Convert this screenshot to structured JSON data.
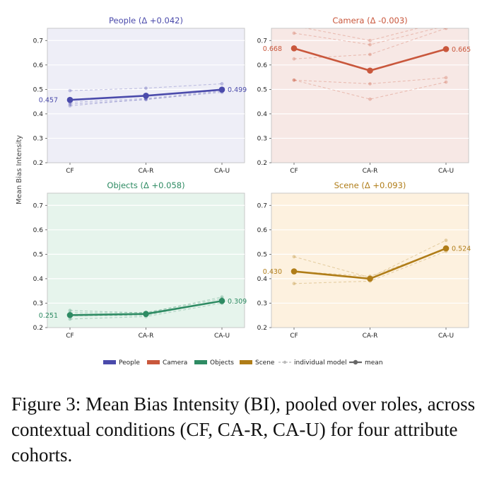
{
  "figure": {
    "ylabel": "Mean Bias Intensity",
    "legend": {
      "placement": "bottom",
      "items": [
        {
          "label": "People",
          "type": "swatch",
          "color": "#4a4aab"
        },
        {
          "label": "Camera",
          "type": "swatch",
          "color": "#c9573c"
        },
        {
          "label": "Objects",
          "type": "swatch",
          "color": "#2e8b63"
        },
        {
          "label": "Scene",
          "type": "swatch",
          "color": "#b07d18"
        },
        {
          "label": "individual model",
          "type": "dashed",
          "color": "#bbbbbb"
        },
        {
          "label": "mean",
          "type": "solid",
          "color": "#666666"
        }
      ]
    }
  },
  "chart_data": [
    {
      "type": "line",
      "title": "People  (Δ +0.042)",
      "color": "#4a4aab",
      "background": "#eeeef7",
      "categories": [
        "CF",
        "CA-R",
        "CA-U"
      ],
      "ylim": [
        0.2,
        0.75
      ],
      "yticks": [
        0.2,
        0.3,
        0.4,
        0.5,
        0.6,
        0.7
      ],
      "ytick_labels": [
        "0.2",
        "0.3",
        "0.4",
        "0.5",
        "0.6",
        "0.7"
      ],
      "grid": true,
      "mean": [
        0.457,
        0.474,
        0.499
      ],
      "mean_labels": [
        "0.457",
        "",
        "0.499"
      ],
      "models": [
        [
          0.495,
          0.505,
          0.523
        ],
        [
          0.447,
          0.463,
          0.495
        ],
        [
          0.44,
          0.458,
          0.492
        ],
        [
          0.433,
          0.46,
          0.488
        ]
      ]
    },
    {
      "type": "line",
      "title": "Camera  (Δ -0.003)",
      "color": "#c9573c",
      "background": "#f7e8e5",
      "categories": [
        "CF",
        "CA-R",
        "CA-U"
      ],
      "ylim": [
        0.2,
        0.75
      ],
      "yticks": [
        0.2,
        0.3,
        0.4,
        0.5,
        0.6,
        0.7
      ],
      "ytick_labels": [
        "0.2",
        "0.3",
        "0.4",
        "0.5",
        "0.6",
        "0.7"
      ],
      "grid": true,
      "mean": [
        0.668,
        0.577,
        0.665
      ],
      "mean_labels": [
        "0.668",
        "",
        "0.665"
      ],
      "models": [
        [
          0.73,
          0.683,
          0.76
        ],
        [
          0.76,
          0.7,
          0.78
        ],
        [
          0.625,
          0.643,
          0.75
        ],
        [
          0.538,
          0.523,
          0.548
        ],
        [
          0.538,
          0.46,
          0.53
        ]
      ]
    },
    {
      "type": "line",
      "title": "Objects  (Δ +0.058)",
      "color": "#2e8b63",
      "background": "#e6f4ec",
      "categories": [
        "CF",
        "CA-R",
        "CA-U"
      ],
      "ylim": [
        0.2,
        0.75
      ],
      "yticks": [
        0.2,
        0.3,
        0.4,
        0.5,
        0.6,
        0.7
      ],
      "ytick_labels": [
        "0.2",
        "0.3",
        "0.4",
        "0.5",
        "0.6",
        "0.7"
      ],
      "grid": true,
      "mean": [
        0.251,
        0.256,
        0.309
      ],
      "mean_labels": [
        "0.251",
        "",
        "0.309"
      ],
      "models": [
        [
          0.27,
          0.26,
          0.325
        ],
        [
          0.26,
          0.262,
          0.318
        ],
        [
          0.248,
          0.25,
          0.31
        ],
        [
          0.235,
          0.245,
          0.3
        ]
      ]
    },
    {
      "type": "line",
      "title": "Scene  (Δ +0.093)",
      "color": "#b07d18",
      "background": "#fdf1df",
      "categories": [
        "CF",
        "CA-R",
        "CA-U"
      ],
      "ylim": [
        0.2,
        0.75
      ],
      "yticks": [
        0.2,
        0.3,
        0.4,
        0.5,
        0.6,
        0.7
      ],
      "ytick_labels": [
        "0.2",
        "0.3",
        "0.4",
        "0.5",
        "0.6",
        "0.7"
      ],
      "grid": true,
      "mean": [
        0.43,
        0.4,
        0.524
      ],
      "mean_labels": [
        "0.430",
        "",
        "0.524"
      ],
      "models": [
        [
          0.49,
          0.405,
          0.557
        ],
        [
          0.43,
          0.41,
          0.52
        ],
        [
          0.38,
          0.39,
          0.512
        ]
      ]
    }
  ],
  "caption": "Figure 3: Mean Bias Intensity (BI), pooled over roles, across contextual conditions (CF, CA-R, CA-U) for four attribute cohorts."
}
